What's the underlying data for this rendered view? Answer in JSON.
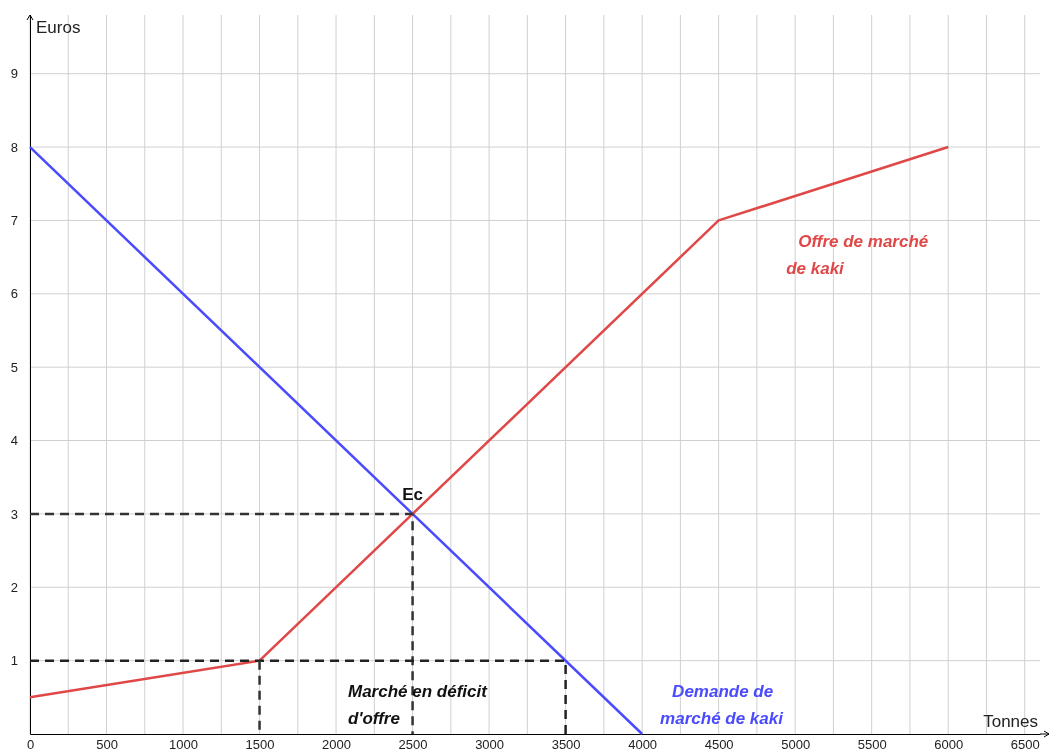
{
  "chart_data": {
    "type": "line",
    "xlabel": "Tonnes",
    "ylabel": "Euros",
    "xlim": [
      0,
      6600
    ],
    "ylim": [
      0,
      9.8
    ],
    "xticks": [
      0,
      {
        "value": 250,
        "label": null
      },
      500,
      {
        "value": 750,
        "label": null
      },
      1000,
      {
        "value": 1250,
        "label": null
      },
      1500,
      {
        "value": 1750,
        "label": null
      },
      2000,
      {
        "value": 2250,
        "label": null
      },
      2500,
      {
        "value": 2750,
        "label": null
      },
      3000,
      {
        "value": 3250,
        "label": null
      },
      3500,
      {
        "value": 3750,
        "label": null
      },
      4000,
      {
        "value": 4250,
        "label": null
      },
      4500,
      {
        "value": 4750,
        "label": null
      },
      5000,
      {
        "value": 5250,
        "label": null
      },
      5500,
      {
        "value": 5750,
        "label": null
      },
      6000,
      {
        "value": 6250,
        "label": null
      },
      6500
    ],
    "yticks": [
      1,
      2,
      3,
      4,
      5,
      6,
      7,
      8,
      9
    ],
    "grid": true,
    "marker": "none",
    "series": [
      {
        "name": "Demande de marché de kaki",
        "color": "#4a4aff",
        "x": [
          0,
          4000
        ],
        "values": [
          8,
          0
        ]
      },
      {
        "name": "Offre de marché de kaki",
        "color": "#e04848",
        "x": [
          0,
          1500,
          4500,
          6000
        ],
        "values": [
          0.5,
          1,
          7,
          8
        ]
      },
      {
        "color": "#333333",
        "line_style": "dashed",
        "x": [
          0,
          2500,
          2500
        ],
        "values": [
          3,
          3,
          0
        ]
      },
      {
        "color": "#222222",
        "line_style": "dashed",
        "x": [
          0,
          3500,
          3500
        ],
        "values": [
          1,
          1,
          0
        ]
      },
      {
        "color": "#333333",
        "line_style": "dashed",
        "x": [
          1500,
          1500
        ],
        "values": [
          1,
          0
        ]
      }
    ],
    "annotations": [
      {
        "text": "Ec",
        "x": 2500,
        "y": 3
      },
      "Marché en déficit d'offre"
    ]
  }
}
